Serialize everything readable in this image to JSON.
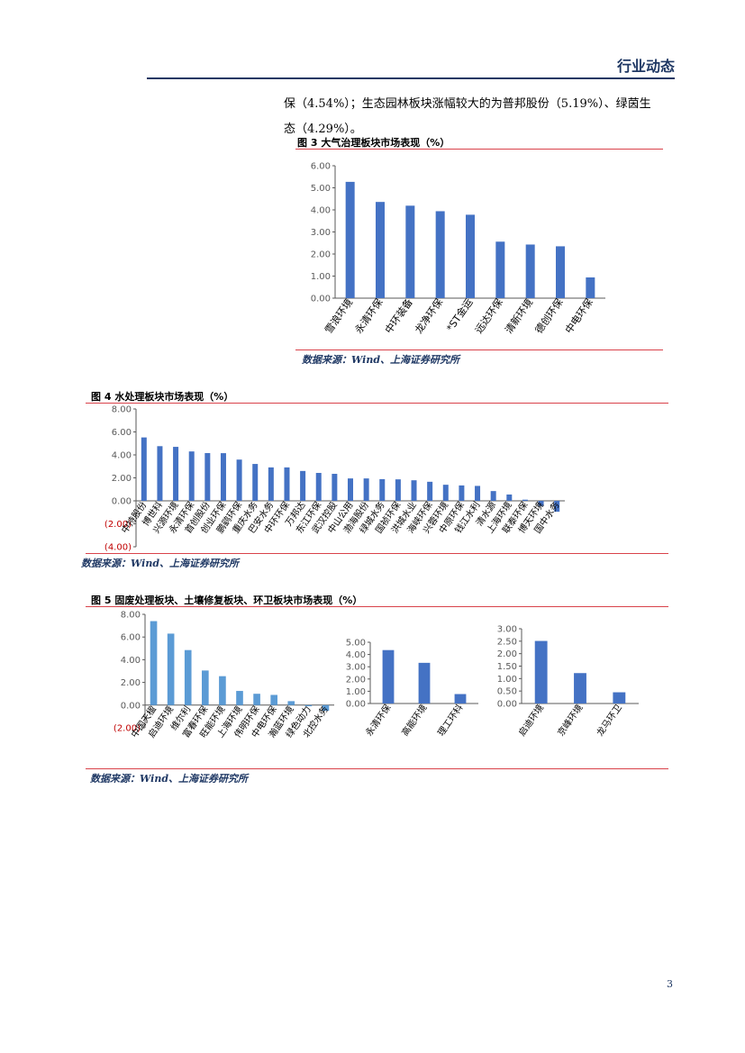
{
  "header": {
    "title": "行业动态"
  },
  "body_text": {
    "line1": "保（4.54%）；生态园林板块涨幅较大的为普邦股份（5.19%）、绿茵生",
    "line2": "态（4.29%）。"
  },
  "figures": {
    "fig3_title": "图 3 大气治理板块市场表现（%）",
    "fig4_title": "图 4  水处理板块市场表现（%）",
    "fig5_title": "图 5 固废处理板块、土壤修复板块、环卫板块市场表现（%）",
    "source": "数据来源：Wind、上海证券研究所"
  },
  "page_number": "3",
  "colors": {
    "bar": "#4472c4",
    "bar_light": "#5b9bd5",
    "rule": "#d9424a",
    "header": "#1f3864",
    "negative_tick": "#c00000"
  },
  "chart_data": [
    {
      "id": "fig3",
      "type": "bar",
      "categories": [
        "雪浪环境",
        "永清环保",
        "中环装备",
        "龙净环保",
        "*ST金运",
        "远达环保",
        "清新环境",
        "德创环保",
        "中电环保"
      ],
      "values": [
        5.27,
        4.36,
        4.19,
        3.94,
        3.78,
        2.56,
        2.43,
        2.35,
        0.94
      ],
      "ylim": [
        0,
        6
      ],
      "yticks": [
        "6.00",
        "5.00",
        "4.00",
        "3.00",
        "2.00",
        "1.00",
        "0.00"
      ]
    },
    {
      "id": "fig4",
      "type": "bar",
      "categories": [
        "中持股份",
        "博世科",
        "兴源环境",
        "永清环保",
        "首创股份",
        "创业环保",
        "鹏鹞环保",
        "重庆水务",
        "巴安水务",
        "中环环保",
        "万邦达",
        "东江环保",
        "武汉控股",
        "中山公用",
        "渤海股份",
        "绿城水务",
        "国祯环保",
        "洪城水业",
        "海峡环保",
        "兴蓉环境",
        "中原环保",
        "钱江水利",
        "清水源",
        "上海环境",
        "联泰环保",
        "博天环境",
        "国中水务"
      ],
      "values": [
        5.52,
        4.76,
        4.7,
        4.3,
        4.16,
        4.15,
        3.59,
        3.21,
        2.91,
        2.91,
        2.6,
        2.43,
        2.35,
        1.95,
        1.95,
        1.89,
        1.87,
        1.79,
        1.66,
        1.4,
        1.34,
        1.3,
        0.85,
        0.55,
        0.1,
        -0.45,
        -0.95
      ],
      "ylim": [
        -4,
        8
      ],
      "yticks": [
        "8.00",
        "6.00",
        "4.00",
        "2.00",
        "0.00",
        "(2.00)",
        "(4.00)"
      ]
    },
    {
      "id": "fig5a",
      "type": "bar",
      "categories": [
        "中国天楹",
        "启迪环境",
        "维尔利",
        "富春环保",
        "旺能环境",
        "上海环境",
        "伟明环保",
        "中电环保",
        "瀚蓝环境",
        "绿色动力",
        "北控水务"
      ],
      "values": [
        7.4,
        6.3,
        4.85,
        3.05,
        2.55,
        1.25,
        1.0,
        0.9,
        0.35,
        -0.1,
        -0.5
      ],
      "ylim": [
        -2,
        8
      ],
      "yticks": [
        "8.00",
        "6.00",
        "4.00",
        "2.00",
        "0.00",
        "(2.00)"
      ]
    },
    {
      "id": "fig5b",
      "type": "bar",
      "categories": [
        "永清环保",
        "高能环境",
        "理工环科"
      ],
      "values": [
        4.36,
        3.32,
        0.77
      ],
      "ylim": [
        0,
        5
      ],
      "yticks": [
        "5.00",
        "4.00",
        "3.00",
        "2.00",
        "1.00",
        "0.00"
      ]
    },
    {
      "id": "fig5c",
      "type": "bar",
      "categories": [
        "启迪环境",
        "京峰环境",
        "龙马环卫"
      ],
      "values": [
        2.51,
        1.22,
        0.45
      ],
      "ylim": [
        0,
        3
      ],
      "yticks": [
        "3.00",
        "2.50",
        "2.00",
        "1.50",
        "1.00",
        "0.50",
        "0.00"
      ]
    }
  ]
}
